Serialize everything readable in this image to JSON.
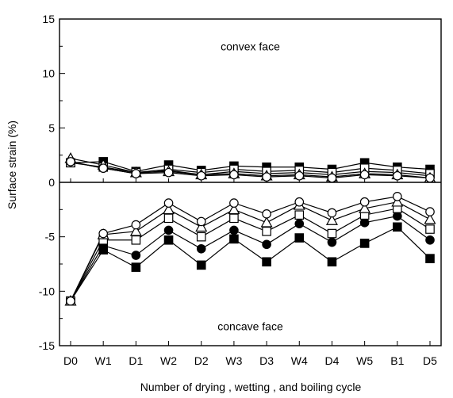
{
  "chart_data": {
    "type": "line",
    "title": "",
    "xlabel": "Number of drying , wetting ,  and boiling cycle",
    "ylabel": "Surface strain (%)",
    "categories": [
      "D0",
      "W1",
      "D1",
      "W2",
      "D2",
      "W3",
      "D3",
      "W4",
      "D4",
      "W5",
      "B1",
      "D5"
    ],
    "ylim": [
      -15,
      15
    ],
    "yticks": [
      15,
      10,
      5,
      0,
      -5,
      -10,
      -15
    ],
    "ytick_labels": [
      "15",
      "10",
      "5",
      "0",
      "-5",
      "-10",
      "-15"
    ],
    "grid": false,
    "legend": "none",
    "zero_line": true,
    "annotations": [
      {
        "text": "convex  face",
        "x": 5.5,
        "y": 12.5
      },
      {
        "text": "concave  face",
        "x": 5.5,
        "y": -13.2
      }
    ],
    "series": [
      {
        "marker": "filled-square",
        "values": [
          1.8,
          1.9,
          1.0,
          1.6,
          1.1,
          1.5,
          1.4,
          1.4,
          1.2,
          1.8,
          1.4,
          1.2
        ]
      },
      {
        "marker": "filled-circle",
        "values": [
          1.9,
          1.3,
          0.8,
          1.1,
          0.7,
          1.0,
          0.8,
          0.9,
          0.7,
          1.0,
          0.9,
          0.6
        ]
      },
      {
        "marker": "open-square",
        "values": [
          1.8,
          1.4,
          0.9,
          1.2,
          0.9,
          1.2,
          1.0,
          1.1,
          0.9,
          1.3,
          1.1,
          0.8
        ]
      },
      {
        "marker": "open-triangle",
        "values": [
          2.2,
          1.6,
          0.9,
          1.0,
          0.7,
          0.8,
          0.6,
          0.7,
          0.5,
          0.8,
          0.7,
          0.4
        ]
      },
      {
        "marker": "open-circle",
        "values": [
          1.9,
          1.3,
          0.8,
          0.9,
          0.6,
          0.7,
          0.5,
          0.6,
          0.4,
          0.7,
          0.6,
          0.4
        ]
      },
      {
        "marker": "filled-square",
        "values": [
          -10.9,
          -6.2,
          -7.8,
          -5.3,
          -7.6,
          -5.2,
          -7.3,
          -5.1,
          -7.3,
          -5.6,
          -4.1,
          -7.0
        ]
      },
      {
        "marker": "filled-circle",
        "values": [
          -10.9,
          -5.8,
          -6.7,
          -4.4,
          -6.1,
          -4.4,
          -5.7,
          -3.8,
          -5.5,
          -3.7,
          -3.1,
          -5.3
        ]
      },
      {
        "marker": "open-square",
        "values": [
          -10.9,
          -5.3,
          -5.3,
          -3.3,
          -5.0,
          -3.3,
          -4.5,
          -3.0,
          -4.7,
          -3.0,
          -2.4,
          -4.3
        ]
      },
      {
        "marker": "open-triangle",
        "values": [
          -10.9,
          -4.8,
          -4.5,
          -2.5,
          -4.1,
          -2.5,
          -3.7,
          -2.1,
          -3.5,
          -2.4,
          -1.8,
          -3.4
        ]
      },
      {
        "marker": "open-circle",
        "values": [
          -10.9,
          -4.7,
          -3.9,
          -1.9,
          -3.6,
          -1.9,
          -2.9,
          -1.8,
          -2.8,
          -1.8,
          -1.3,
          -2.7
        ]
      }
    ]
  }
}
